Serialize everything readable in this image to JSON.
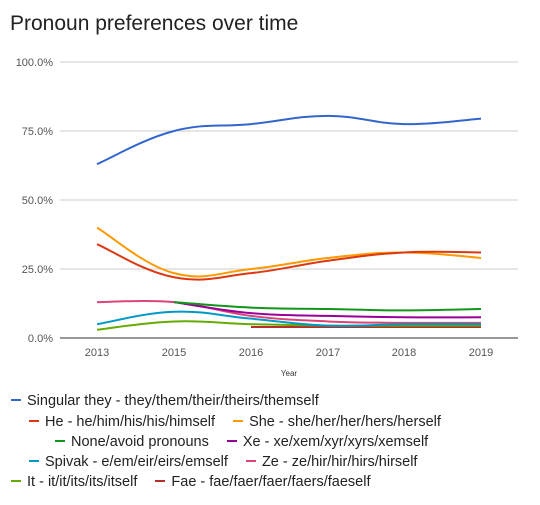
{
  "chart_data": {
    "type": "line",
    "title": "Pronoun preferences over time",
    "xlabel": "Year",
    "ylabel": "",
    "x": [
      2013,
      2015,
      2016,
      2017,
      2018,
      2019
    ],
    "x_tick_labels": [
      "2013",
      "2015",
      "2016",
      "2017",
      "2018",
      "2019"
    ],
    "y_tick_labels": [
      "0.0%",
      "25.0%",
      "50.0%",
      "75.0%",
      "100.0%"
    ],
    "ylim": [
      0,
      100
    ],
    "grid": true,
    "legend_position": "bottom",
    "series": [
      {
        "name": "Singular they - they/them/their/theirs/themself",
        "color": "#3366cc",
        "values": [
          63,
          75,
          77.5,
          80.5,
          77.5,
          79.5
        ]
      },
      {
        "name": "He - he/him/his/his/himself",
        "color": "#dc3912",
        "values": [
          34,
          22,
          23.5,
          28,
          31,
          31
        ]
      },
      {
        "name": "She - she/her/her/hers/herself",
        "color": "#ff9900",
        "values": [
          40,
          23.5,
          25,
          29,
          31,
          29
        ]
      },
      {
        "name": "None/avoid pronouns",
        "color": "#109618",
        "values": [
          null,
          13,
          11,
          10.5,
          10,
          10.5
        ]
      },
      {
        "name": "Xe - xe/xem/xyr/xyrs/xemself",
        "color": "#990099",
        "values": [
          null,
          13,
          9,
          8,
          7.5,
          7.5
        ]
      },
      {
        "name": "Spivak - e/em/eir/eirs/emself",
        "color": "#0099c6",
        "values": [
          5,
          9.5,
          7,
          4.5,
          5,
          5
        ]
      },
      {
        "name": "Ze - ze/hir/hir/hirs/hirself",
        "color": "#dd4477",
        "values": [
          13,
          13,
          8,
          6,
          5.5,
          5.5
        ]
      },
      {
        "name": "It - it/it/its/its/itself",
        "color": "#66aa00",
        "values": [
          3,
          6,
          5,
          4.5,
          4.5,
          4.5
        ]
      },
      {
        "name": "Fae - fae/faer/faer/faers/faeself",
        "color": "#b82e2e",
        "values": [
          null,
          null,
          4,
          4,
          4,
          4
        ]
      }
    ]
  }
}
